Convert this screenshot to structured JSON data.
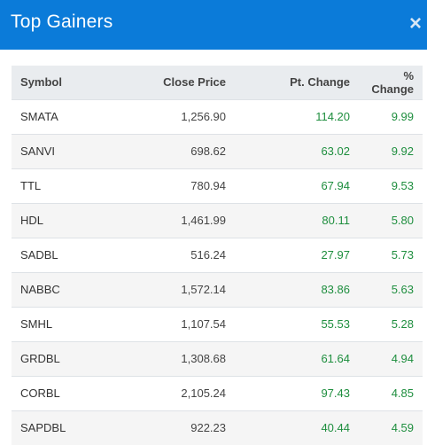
{
  "modal": {
    "title": "Top Gainers",
    "close_label": "×"
  },
  "table": {
    "headers": {
      "symbol": "Symbol",
      "close_price": "Close Price",
      "pt_change": "Pt. Change",
      "pct_change": "% Change"
    },
    "rows": [
      {
        "symbol": "SMATA",
        "close_price": "1,256.90",
        "pt_change": "114.20",
        "pct_change": "9.99"
      },
      {
        "symbol": "SANVI",
        "close_price": "698.62",
        "pt_change": "63.02",
        "pct_change": "9.92"
      },
      {
        "symbol": "TTL",
        "close_price": "780.94",
        "pt_change": "67.94",
        "pct_change": "9.53"
      },
      {
        "symbol": "HDL",
        "close_price": "1,461.99",
        "pt_change": "80.11",
        "pct_change": "5.80"
      },
      {
        "symbol": "SADBL",
        "close_price": "516.24",
        "pt_change": "27.97",
        "pct_change": "5.73"
      },
      {
        "symbol": "NABBC",
        "close_price": "1,572.14",
        "pt_change": "83.86",
        "pct_change": "5.63"
      },
      {
        "symbol": "SMHL",
        "close_price": "1,107.54",
        "pt_change": "55.53",
        "pct_change": "5.28"
      },
      {
        "symbol": "GRDBL",
        "close_price": "1,308.68",
        "pt_change": "61.64",
        "pct_change": "4.94"
      },
      {
        "symbol": "CORBL",
        "close_price": "2,105.24",
        "pt_change": "97.43",
        "pct_change": "4.85"
      },
      {
        "symbol": "SAPDBL",
        "close_price": "922.23",
        "pt_change": "40.44",
        "pct_change": "4.59"
      }
    ]
  },
  "colors": {
    "header_bg": "#0b7bd9",
    "positive": "#1e8e3e",
    "table_header_bg": "#e9ecef"
  }
}
